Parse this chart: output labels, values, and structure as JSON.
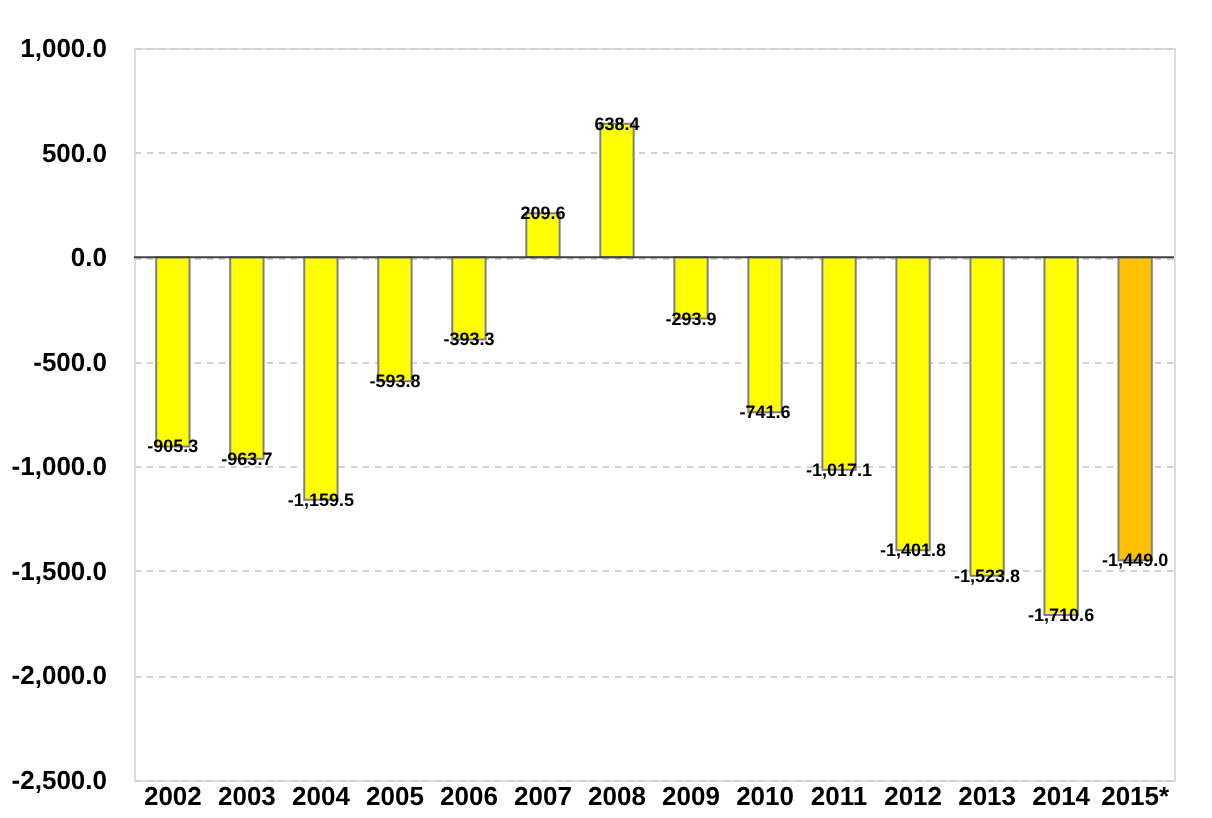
{
  "chart_data": {
    "type": "bar",
    "categories": [
      "2002",
      "2003",
      "2004",
      "2005",
      "2006",
      "2007",
      "2008",
      "2009",
      "2010",
      "2011",
      "2012",
      "2013",
      "2014",
      "2015*"
    ],
    "values": [
      -905.3,
      -963.7,
      -1159.5,
      -593.8,
      -393.3,
      209.6,
      638.4,
      -293.9,
      -741.6,
      -1017.1,
      -1401.8,
      -1523.8,
      -1710.6,
      -1449.0
    ],
    "colors": [
      "#ffff00",
      "#ffff00",
      "#ffff00",
      "#ffff00",
      "#ffff00",
      "#ffff00",
      "#ffff00",
      "#ffff00",
      "#ffff00",
      "#ffff00",
      "#ffff00",
      "#ffff00",
      "#ffff00",
      "#ffc000"
    ],
    "ylim": [
      -2500,
      1000
    ],
    "yticks": [
      {
        "value": -2500,
        "label": "-2,500.0"
      },
      {
        "value": -2000,
        "label": "-2,000.0"
      },
      {
        "value": -1500,
        "label": "-1,500.0"
      },
      {
        "value": -1000,
        "label": "-1,000.0"
      },
      {
        "value": -500,
        "label": "-500.0"
      },
      {
        "value": 0,
        "label": "0.0"
      },
      {
        "value": 500,
        "label": "500.0"
      },
      {
        "value": 1000,
        "label": "1,000.0"
      }
    ],
    "value_labels": [
      "-905.3",
      "-963.7",
      "-1,159.5",
      "-593.8",
      "-393.3",
      "209.6",
      "638.4",
      "-293.9",
      "-741.6",
      "-1,017.1",
      "-1,401.8",
      "-1,523.8",
      "-1,710.6",
      "-1,449.0"
    ],
    "grid": "y"
  }
}
